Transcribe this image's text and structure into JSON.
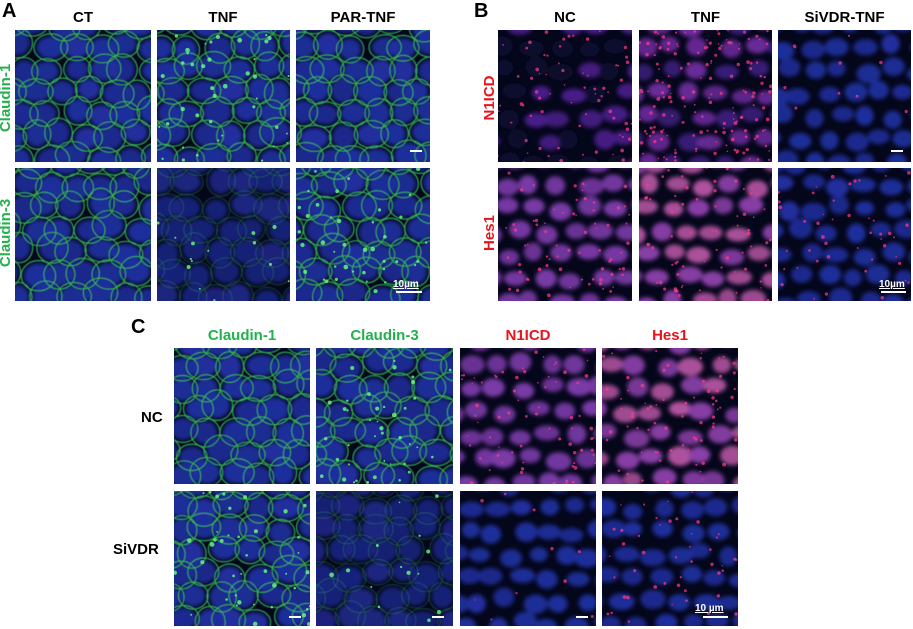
{
  "panelA": {
    "letter": "A",
    "columns": [
      "CT",
      "TNF",
      "PAR-TNF"
    ],
    "rows": [
      "Claudin-1",
      "Claudin-3"
    ],
    "scale_label": "10µm"
  },
  "panelB": {
    "letter": "B",
    "columns": [
      "NC",
      "TNF",
      "SiVDR-TNF"
    ],
    "rows": [
      "N1ICD",
      "Hes1"
    ],
    "scale_label": "10µm"
  },
  "panelC": {
    "letter": "C",
    "columns": [
      "Claudin-1",
      "Claudin-3",
      "N1ICD",
      "Hes1"
    ],
    "rows": [
      "NC",
      "SiVDR"
    ],
    "scale_label": "10 µm"
  },
  "colors": {
    "green_label": "#22b14c",
    "red_label": "#e8141c",
    "dapi_blue": "#1c2a8c",
    "junction_green": "#3cd25a",
    "notch_magenta": "#c2187a"
  }
}
